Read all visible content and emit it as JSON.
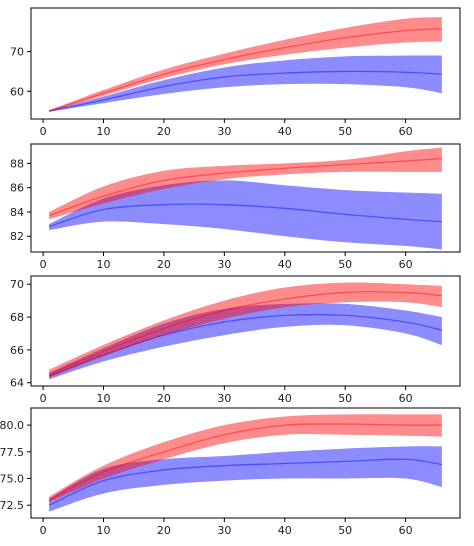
{
  "chart_data": [
    {
      "type": "area",
      "xlim": [
        -2,
        69
      ],
      "ylim": [
        53.0,
        81.0
      ],
      "xticks": [
        0,
        10,
        20,
        30,
        40,
        50,
        60
      ],
      "yticks": [
        60,
        70
      ],
      "colors": {
        "red": "#ff0000",
        "blue": "#0000ff"
      },
      "series": [
        {
          "color": "red",
          "x": [
            1,
            10,
            20,
            30,
            40,
            50,
            60,
            66
          ],
          "mean": [
            55.0,
            59.5,
            64.3,
            68.0,
            71.0,
            73.5,
            75.3,
            75.8
          ],
          "lower": [
            54.9,
            58.9,
            63.3,
            66.8,
            69.2,
            71.0,
            72.3,
            72.5
          ],
          "upper": [
            55.2,
            60.3,
            65.5,
            69.5,
            73.0,
            76.0,
            78.3,
            78.7
          ]
        },
        {
          "color": "blue",
          "x": [
            1,
            10,
            20,
            30,
            40,
            50,
            60,
            66
          ],
          "mean": [
            55.0,
            57.8,
            61.2,
            63.6,
            64.6,
            65.0,
            64.8,
            64.3
          ],
          "lower": [
            54.8,
            57.0,
            59.3,
            61.0,
            61.8,
            61.8,
            61.0,
            59.5
          ],
          "upper": [
            55.2,
            58.7,
            62.8,
            66.0,
            67.8,
            68.8,
            69.0,
            69.0
          ]
        }
      ]
    },
    {
      "type": "area",
      "xlim": [
        -2,
        69
      ],
      "ylim": [
        80.7,
        89.6
      ],
      "xticks": [
        0,
        10,
        20,
        30,
        40,
        50,
        60
      ],
      "yticks": [
        82,
        84,
        86,
        88
      ],
      "colors": {
        "red": "#ff0000",
        "blue": "#0000ff"
      },
      "series": [
        {
          "color": "red",
          "x": [
            1,
            10,
            20,
            30,
            40,
            50,
            60,
            66
          ],
          "mean": [
            83.7,
            85.3,
            86.6,
            87.2,
            87.6,
            87.9,
            88.2,
            88.4
          ],
          "lower": [
            83.4,
            84.7,
            85.9,
            86.7,
            87.1,
            87.3,
            87.3,
            87.3
          ],
          "upper": [
            84.0,
            86.1,
            87.4,
            87.8,
            88.0,
            88.3,
            89.0,
            89.3
          ]
        },
        {
          "color": "blue",
          "x": [
            1,
            10,
            20,
            30,
            40,
            50,
            60,
            66
          ],
          "mean": [
            82.8,
            84.2,
            84.6,
            84.6,
            84.3,
            83.8,
            83.4,
            83.2
          ],
          "lower": [
            82.5,
            83.2,
            83.0,
            82.6,
            82.0,
            81.5,
            81.2,
            80.9
          ],
          "upper": [
            83.0,
            85.1,
            86.2,
            86.6,
            86.2,
            85.8,
            85.6,
            85.5
          ]
        }
      ]
    },
    {
      "type": "area",
      "xlim": [
        -2,
        69
      ],
      "ylim": [
        63.8,
        70.5
      ],
      "xticks": [
        0,
        10,
        20,
        30,
        40,
        50,
        60
      ],
      "yticks": [
        64,
        66,
        68,
        70
      ],
      "colors": {
        "red": "#ff0000",
        "blue": "#0000ff"
      },
      "series": [
        {
          "color": "red",
          "x": [
            1,
            10,
            20,
            30,
            40,
            50,
            60,
            66
          ],
          "mean": [
            64.5,
            65.9,
            67.3,
            68.4,
            69.1,
            69.5,
            69.5,
            69.3
          ],
          "lower": [
            64.3,
            65.6,
            66.9,
            67.9,
            68.6,
            68.9,
            68.9,
            68.6
          ],
          "upper": [
            64.8,
            66.3,
            67.8,
            69.0,
            69.8,
            70.1,
            70.0,
            69.9
          ]
        },
        {
          "color": "blue",
          "x": [
            1,
            10,
            20,
            30,
            40,
            50,
            60,
            66
          ],
          "mean": [
            64.4,
            65.7,
            66.9,
            67.7,
            68.1,
            68.1,
            67.7,
            67.2
          ],
          "lower": [
            64.2,
            65.3,
            66.2,
            66.9,
            67.4,
            67.5,
            67.0,
            66.3
          ],
          "upper": [
            64.6,
            66.1,
            67.6,
            68.5,
            68.8,
            68.8,
            68.4,
            68.0
          ]
        }
      ]
    },
    {
      "type": "area",
      "xlim": [
        -2,
        69
      ],
      "ylim": [
        71.3,
        81.6
      ],
      "xticks": [
        0,
        10,
        20,
        30,
        40,
        50,
        60
      ],
      "yticks": [
        72.5,
        75.0,
        77.5,
        80.0
      ],
      "ytick_labels": [
        "72.5",
        "75.0",
        "77.5",
        "80.0"
      ],
      "colors": {
        "red": "#ff0000",
        "blue": "#0000ff"
      },
      "series": [
        {
          "color": "red",
          "x": [
            1,
            10,
            20,
            30,
            40,
            50,
            60,
            66
          ],
          "mean": [
            73.0,
            75.6,
            77.5,
            79.1,
            80.0,
            80.1,
            80.0,
            80.0
          ],
          "lower": [
            72.8,
            75.0,
            76.8,
            78.3,
            79.1,
            79.1,
            79.0,
            78.9
          ],
          "upper": [
            73.3,
            76.2,
            78.4,
            80.0,
            80.8,
            81.0,
            81.0,
            81.0
          ]
        },
        {
          "color": "blue",
          "x": [
            1,
            10,
            20,
            30,
            40,
            50,
            60,
            66
          ],
          "mean": [
            72.5,
            74.8,
            75.8,
            76.2,
            76.4,
            76.6,
            76.8,
            76.3
          ],
          "lower": [
            71.9,
            73.6,
            74.4,
            74.8,
            75.0,
            75.0,
            75.0,
            74.2
          ],
          "upper": [
            73.1,
            75.9,
            76.8,
            77.1,
            77.5,
            77.8,
            78.0,
            78.0
          ]
        }
      ]
    }
  ]
}
